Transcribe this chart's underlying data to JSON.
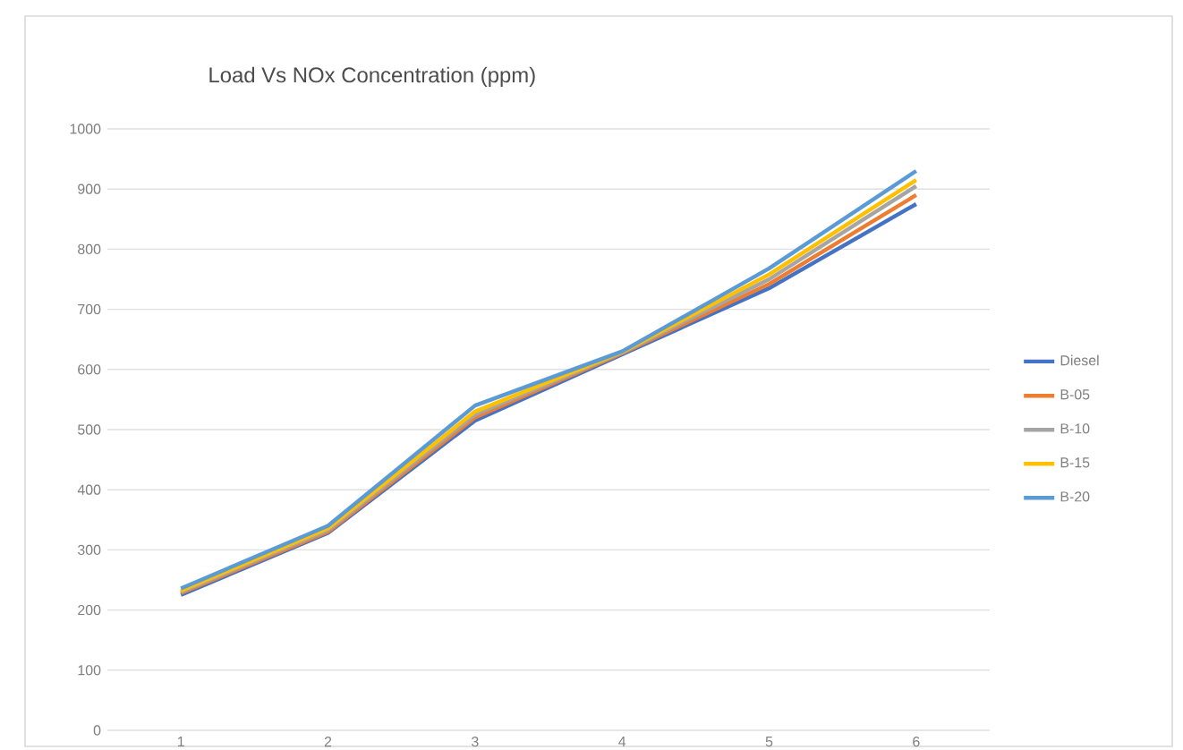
{
  "chart_data": {
    "type": "line",
    "title": "Load Vs NOx Concentration (ppm)",
    "categories": [
      "1",
      "2",
      "3",
      "4",
      "5",
      "6"
    ],
    "series": [
      {
        "name": "Diesel",
        "color": "#4472c4",
        "values": [
          225,
          328,
          515,
          625,
          735,
          875
        ]
      },
      {
        "name": "B-05",
        "color": "#ed7d31",
        "values": [
          228,
          330,
          520,
          627,
          742,
          890
        ]
      },
      {
        "name": "B-10",
        "color": "#a5a5a5",
        "values": [
          230,
          333,
          525,
          628,
          750,
          905
        ]
      },
      {
        "name": "B-15",
        "color": "#ffc000",
        "values": [
          232,
          336,
          530,
          629,
          758,
          915
        ]
      },
      {
        "name": "B-20",
        "color": "#5b9bd5",
        "values": [
          236,
          340,
          540,
          630,
          768,
          930
        ]
      }
    ],
    "ylim": [
      0,
      1000
    ],
    "yticks": [
      0,
      100,
      200,
      300,
      400,
      500,
      600,
      700,
      800,
      900,
      1000
    ],
    "grid": "y",
    "legend": "right",
    "marker": "none",
    "line_style": "solid"
  }
}
